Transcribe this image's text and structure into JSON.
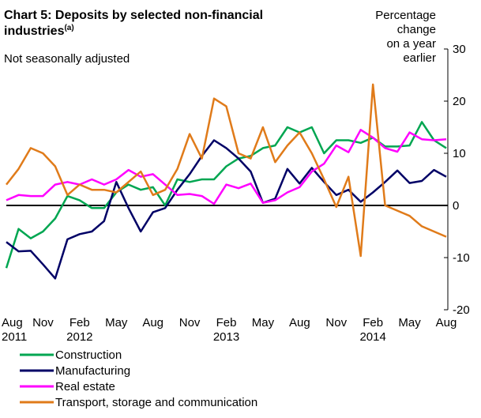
{
  "chart_data": {
    "type": "line",
    "title_lines": [
      "Chart 5: Deposits by selected non-financial",
      "industries"
    ],
    "title_note": "(a)",
    "subtitle": "Not seasonally adjusted",
    "ylabel_lines": [
      "Percentage",
      "change",
      "on a year",
      "earlier"
    ],
    "categories": [
      "Aug",
      null,
      null,
      "Nov",
      null,
      null,
      "Feb",
      null,
      null,
      "May",
      null,
      null,
      "Aug",
      null,
      null,
      "Nov",
      null,
      null,
      "Feb",
      null,
      null,
      "May",
      null,
      null,
      "Aug",
      null,
      null,
      "Nov",
      null,
      null,
      "Feb",
      null,
      null,
      "May",
      null,
      null,
      "Aug"
    ],
    "year_labels": [
      "2011",
      null,
      null,
      null,
      null,
      null,
      "2012",
      null,
      null,
      null,
      null,
      null,
      null,
      null,
      null,
      null,
      null,
      null,
      "2013",
      null,
      null,
      null,
      null,
      null,
      null,
      null,
      null,
      null,
      null,
      null,
      "2014",
      null,
      null,
      null,
      null,
      null,
      null
    ],
    "ylim": [
      -20,
      30
    ],
    "yticks": [
      -20,
      -10,
      0,
      10,
      20,
      30
    ],
    "zero_line": true,
    "series": [
      {
        "name": "Construction",
        "color": "#00a651",
        "values": [
          -12,
          -4.5,
          -6.3,
          -5,
          -2.5,
          1.8,
          1,
          -0.5,
          -0.5,
          2.5,
          4,
          3,
          3.5,
          0,
          5,
          4.5,
          5,
          5,
          7.5,
          9,
          9.5,
          11,
          11.5,
          15,
          14,
          15,
          10,
          12.5,
          12.5,
          12,
          13,
          11.3,
          11.3,
          11.5,
          16,
          12.5,
          11
        ]
      },
      {
        "name": "Manufacturing",
        "color": "#000066",
        "values": [
          -7,
          -8.8,
          -8.7,
          -11.3,
          -14,
          -6.5,
          -5.5,
          -5,
          -3,
          4.5,
          -0.5,
          -5,
          -1.3,
          -0.5,
          3,
          6,
          9.5,
          12.5,
          11,
          9,
          6.5,
          0.5,
          1.3,
          7,
          4.2,
          7.2,
          4.5,
          2,
          3,
          0.7,
          2.5,
          4.5,
          6.7,
          4.3,
          4.7,
          6.8,
          5.5
        ]
      },
      {
        "name": "Real estate",
        "color": "#ff00ff",
        "values": [
          1,
          2,
          1.8,
          1.8,
          4,
          4.5,
          4,
          5,
          4,
          5,
          6.8,
          5.5,
          6,
          4,
          2,
          2.2,
          1.8,
          0.3,
          4,
          3.3,
          4.2,
          0.5,
          1,
          2.5,
          3.5,
          6.5,
          8,
          11.5,
          10.2,
          14.5,
          13,
          11,
          10.3,
          14,
          12.7,
          12.5,
          12.7
        ]
      },
      {
        "name": "Transport, storage and communication",
        "color": "#e07b1a",
        "values": [
          4,
          7,
          11,
          10,
          7.5,
          2,
          4,
          3,
          3,
          2.5,
          4.5,
          6.5,
          2,
          3,
          7,
          13.7,
          9,
          20.5,
          19,
          10,
          9,
          15,
          8.3,
          11.5,
          14,
          10,
          5,
          -0.3,
          5.5,
          -9.7,
          23.2,
          0,
          -1,
          -2,
          -4,
          -5,
          -6
        ]
      }
    ]
  }
}
